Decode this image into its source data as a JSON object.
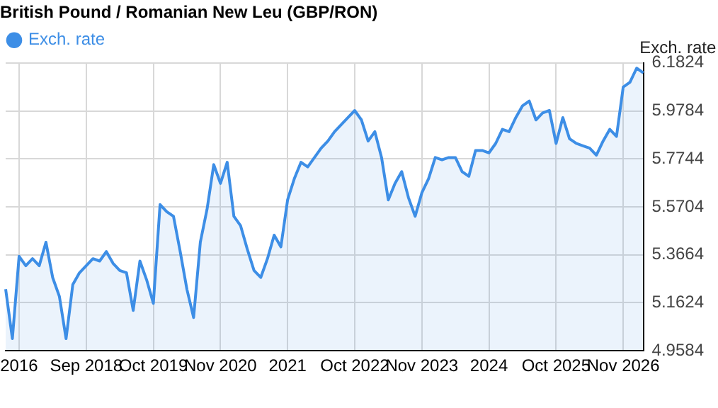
{
  "chart_data": {
    "type": "area",
    "title": "British Pound / Romanian New Leu (GBP/RON)",
    "ylabel": "Exch. rate",
    "categories": [
      null,
      null,
      "2016",
      null,
      null,
      null,
      null,
      null,
      null,
      null,
      null,
      null,
      "Sep 2018",
      null,
      null,
      null,
      null,
      null,
      null,
      null,
      null,
      null,
      "Oct 2019",
      null,
      null,
      null,
      null,
      null,
      null,
      null,
      null,
      null,
      "Nov 2020",
      null,
      null,
      null,
      null,
      null,
      null,
      null,
      null,
      null,
      "2021",
      null,
      null,
      null,
      null,
      null,
      null,
      null,
      null,
      null,
      "Oct 2022",
      null,
      null,
      null,
      null,
      null,
      null,
      null,
      null,
      null,
      "Nov 2023",
      null,
      null,
      null,
      null,
      null,
      null,
      null,
      null,
      null,
      "2024",
      null,
      null,
      null,
      null,
      null,
      null,
      null,
      null,
      null,
      "Oct 2025",
      null,
      null,
      null,
      null,
      null,
      null,
      null,
      null,
      null,
      "Nov 2026",
      null,
      null,
      null
    ],
    "series": [
      {
        "name": "Exch. rate",
        "color": "#3d8ee6",
        "values": [
          5.22,
          5.01,
          5.36,
          5.32,
          5.35,
          5.32,
          5.42,
          5.27,
          5.19,
          5.01,
          5.24,
          5.29,
          5.32,
          5.35,
          5.34,
          5.38,
          5.33,
          5.3,
          5.29,
          5.13,
          5.34,
          5.26,
          5.16,
          5.58,
          5.55,
          5.53,
          5.38,
          5.22,
          5.1,
          5.42,
          5.56,
          5.75,
          5.67,
          5.76,
          5.53,
          5.49,
          5.39,
          5.3,
          5.27,
          5.35,
          5.45,
          5.4,
          5.6,
          5.69,
          5.76,
          5.74,
          5.78,
          5.82,
          5.85,
          5.89,
          5.92,
          5.95,
          5.98,
          5.94,
          5.85,
          5.89,
          5.78,
          5.6,
          5.67,
          5.72,
          5.61,
          5.53,
          5.63,
          5.69,
          5.78,
          5.77,
          5.78,
          5.78,
          5.72,
          5.7,
          5.81,
          5.81,
          5.8,
          5.84,
          5.9,
          5.89,
          5.95,
          6.0,
          6.02,
          5.94,
          5.97,
          5.98,
          5.84,
          5.95,
          5.86,
          5.84,
          5.83,
          5.82,
          5.79,
          5.85,
          5.9,
          5.87,
          6.08,
          6.1,
          6.16,
          6.14
        ]
      }
    ],
    "ylim": [
      4.9584,
      6.1824
    ],
    "yticks": [
      4.9584,
      5.1624,
      5.3664,
      5.5704,
      5.7744,
      5.9784,
      6.1824
    ],
    "grid": true,
    "legend": "top left",
    "marker": "none"
  }
}
